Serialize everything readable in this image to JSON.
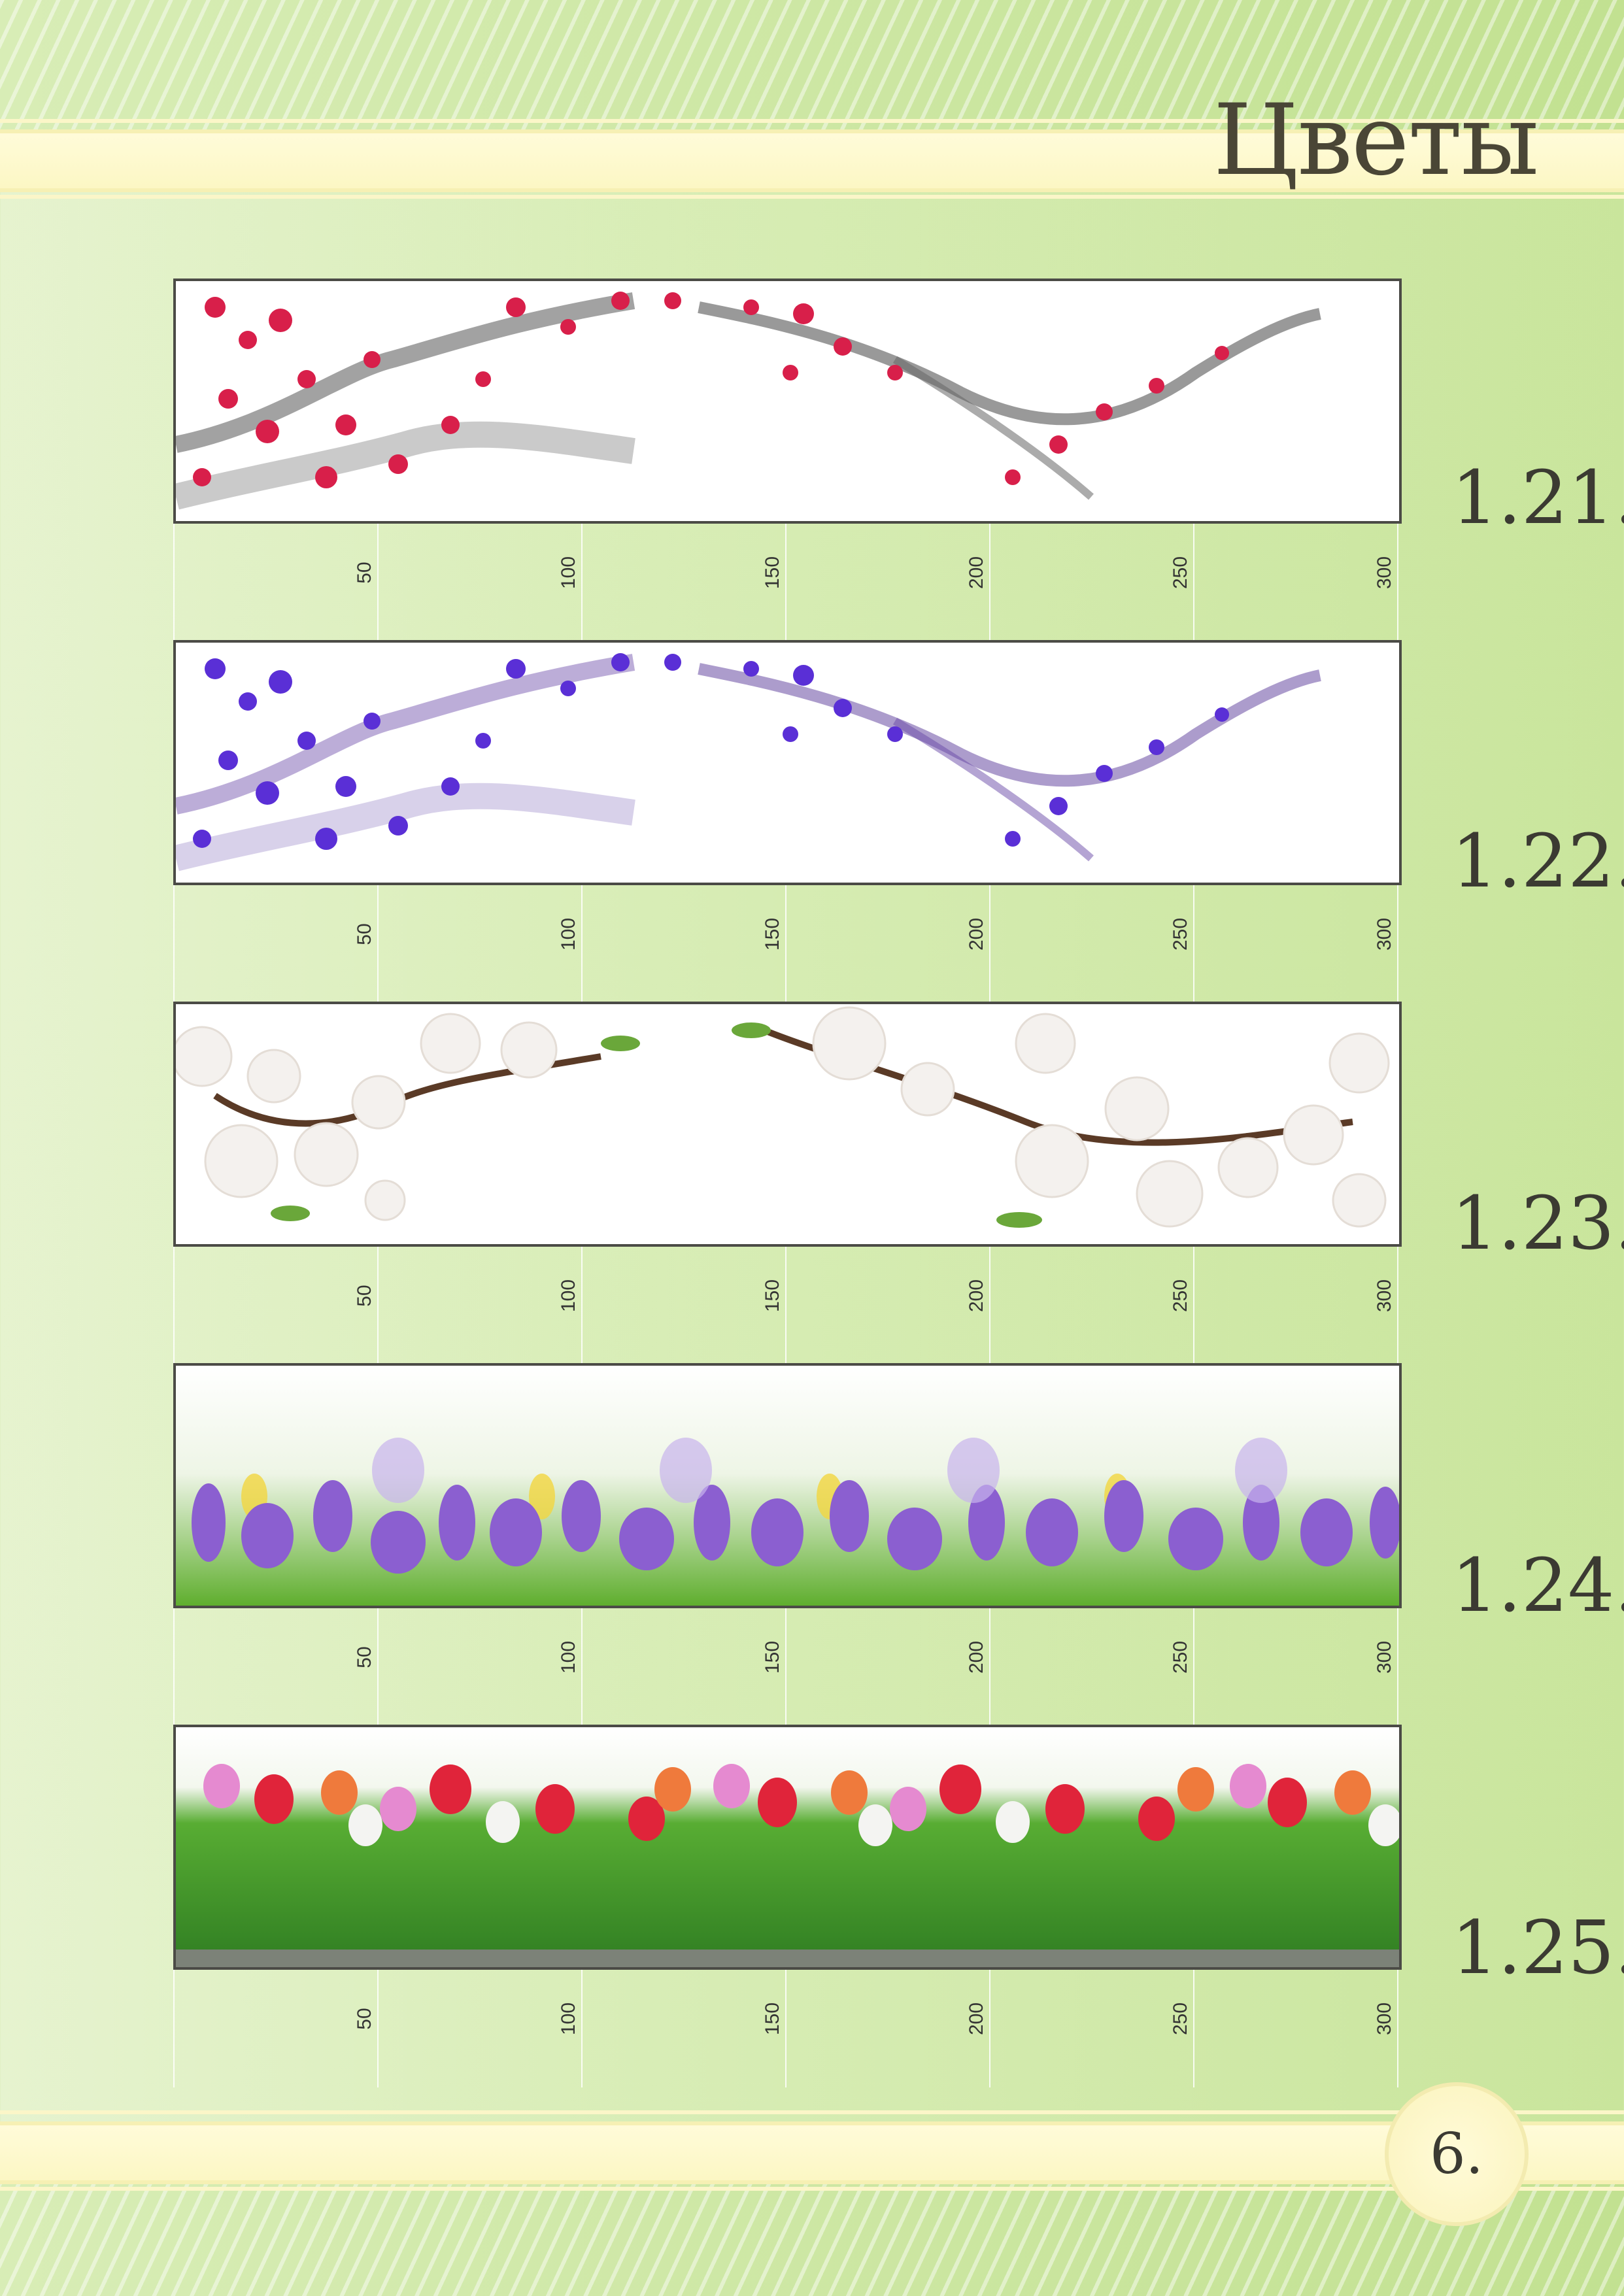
{
  "header": {
    "title": "Цветы"
  },
  "footer": {
    "page_number": "6."
  },
  "ruler_labels": [
    "50",
    "100",
    "150",
    "200",
    "250",
    "300"
  ],
  "items": [
    {
      "code": "1.21.",
      "theme": "ink-painted red plum blossom branch",
      "accent": "#d6224a"
    },
    {
      "code": "1.22.",
      "theme": "ink-painted purple plum blossom branch",
      "accent": "#5a2fd6"
    },
    {
      "code": "1.23.",
      "theme": "white apricot blossom branches",
      "accent": "#ffffff"
    },
    {
      "code": "1.24.",
      "theme": "purple crocuses in green grass",
      "accent": "#8a5bd0"
    },
    {
      "code": "1.25.",
      "theme": "red, pink and white tulips",
      "accent": "#e0243a"
    }
  ]
}
